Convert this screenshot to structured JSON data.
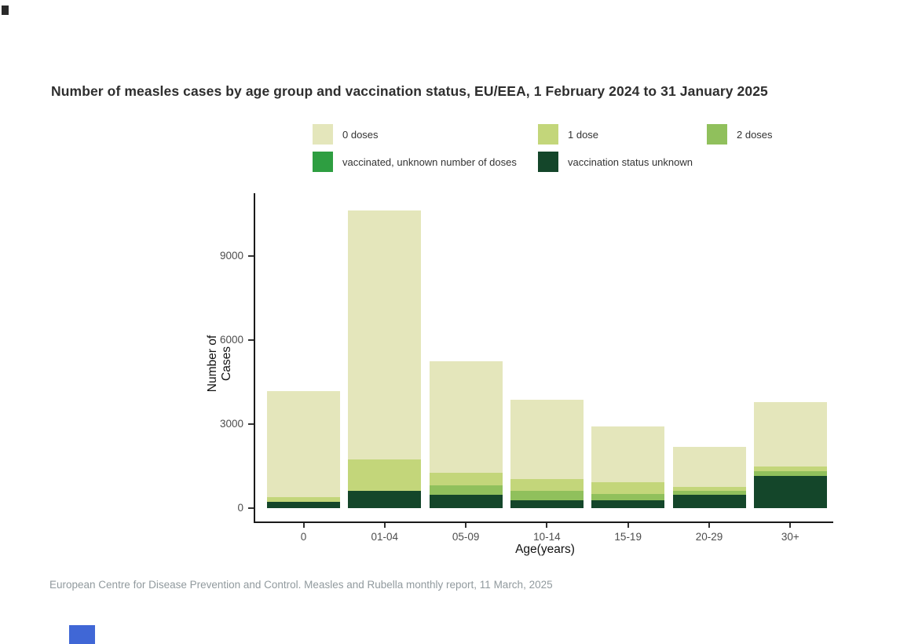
{
  "title": "Number of measles cases by age group and vaccination status, EU/EEA, 1 February 2024 to 31 January 2025",
  "footer": "European Centre for Disease Prevention and Control. Measles and Rubella monthly report, 11 March, 2025",
  "colors": {
    "doses_0": "#e4e6bb",
    "doses_1": "#c3d67a",
    "doses_2": "#90c05c",
    "vaccinated_unknown_doses": "#2e9e41",
    "status_unknown": "#14462a",
    "axis": "#1a1a1a",
    "tick_label": "#4d4d4d",
    "footer_text": "#919a9e"
  },
  "chart_data": {
    "type": "bar",
    "stacked": true,
    "title": "Number of measles cases by age group and vaccination status, EU/EEA, 1 February 2024 to 31 January 2025",
    "xlabel": "Age(years)",
    "ylabel": "Number of Cases",
    "categories": [
      "0",
      "01-04",
      "05-09",
      "10-14",
      "15-19",
      "20-29",
      "30+"
    ],
    "series": [
      {
        "name": "0 doses",
        "color": "#e4e6bb",
        "values": [
          3810,
          8880,
          3980,
          2850,
          1990,
          1450,
          2310
        ]
      },
      {
        "name": "1 dose",
        "color": "#c3d67a",
        "values": [
          150,
          1140,
          450,
          420,
          420,
          140,
          155
        ]
      },
      {
        "name": "2 doses",
        "color": "#90c05c",
        "values": [
          0,
          0,
          330,
          330,
          235,
          140,
          170
        ]
      },
      {
        "name": "vaccinated, unknown number of doses",
        "color": "#2e9e41",
        "values": [
          0,
          0,
          0,
          0,
          0,
          0,
          0
        ]
      },
      {
        "name": "vaccination status unknown",
        "color": "#14462a",
        "values": [
          230,
          610,
          470,
          280,
          280,
          470,
          1155
        ]
      }
    ],
    "totals": [
      4190,
      10630,
      5230,
      3880,
      2925,
      2200,
      3790
    ],
    "yticks": [
      0,
      3000,
      6000,
      9000
    ],
    "ylim": [
      0,
      11240
    ],
    "grid": false,
    "legend_position": "top"
  }
}
